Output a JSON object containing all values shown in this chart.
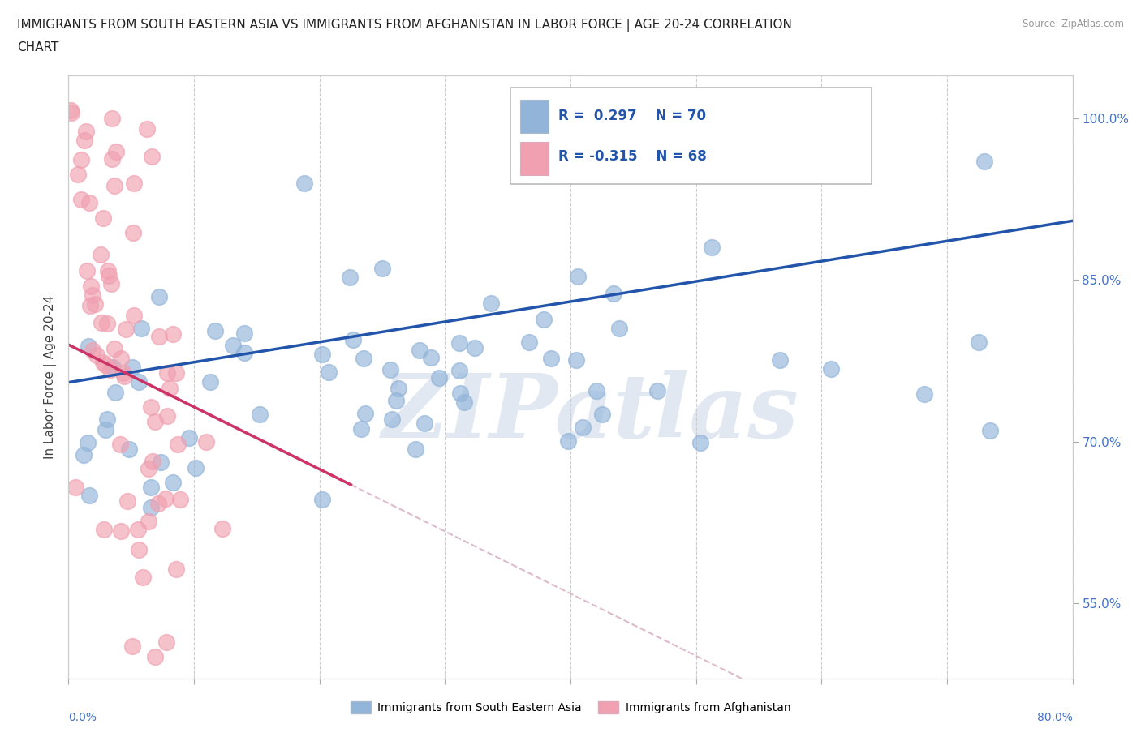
{
  "title_line1": "IMMIGRANTS FROM SOUTH EASTERN ASIA VS IMMIGRANTS FROM AFGHANISTAN IN LABOR FORCE | AGE 20-24 CORRELATION",
  "title_line2": "CHART",
  "source": "Source: ZipAtlas.com",
  "ylabel": "In Labor Force | Age 20-24",
  "xlim": [
    0.0,
    0.8
  ],
  "ylim": [
    0.48,
    1.04
  ],
  "yticks_right": [
    0.55,
    0.7,
    0.85,
    1.0
  ],
  "ytick_labels_right": [
    "55.0%",
    "70.0%",
    "85.0%",
    "100.0%"
  ],
  "R_blue": 0.297,
  "N_blue": 70,
  "R_pink": -0.315,
  "N_pink": 68,
  "blue_color": "#92b4d9",
  "pink_color": "#f0a0b0",
  "blue_line_color": "#2255aa",
  "pink_line_color": "#cc3366",
  "trend_line_dashed_color": "#ddbbcc",
  "watermark": "ZIPatlas",
  "legend_label_blue": "Immigrants from South Eastern Asia",
  "legend_label_pink": "Immigrants from Afghanistan",
  "background_color": "#ffffff",
  "grid_color": "#cccccc",
  "blue_trend_y0": 0.755,
  "blue_trend_y1": 0.905,
  "pink_trend_x0": 0.0,
  "pink_trend_y0": 0.79,
  "pink_trend_x1": 0.225,
  "pink_trend_y1": 0.66
}
